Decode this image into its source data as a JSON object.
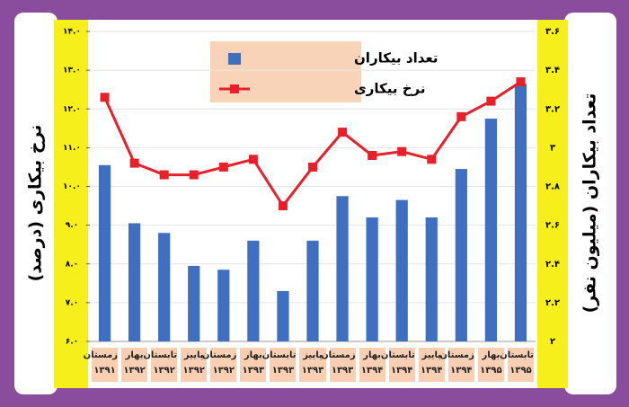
{
  "chart_data": {
    "type": "bar-line",
    "y_label": "نرخ بیکاری (درصد)",
    "y2_label": "تعداد بیکاران (میلیون نفر)",
    "categories": [
      "زمستان\n۱۳۹۱",
      "بهار\n۱۳۹۲",
      "تابستان\n۱۳۹۲",
      "پاییز\n۱۳۹۲",
      "زمستان\n۱۳۹۲",
      "بهار\n۱۳۹۳",
      "تابستان\n۱۳۹۳",
      "پاییز\n۱۳۹۳",
      "زمستان\n۱۳۹۳",
      "بهار\n۱۳۹۴",
      "تابستان\n۱۳۹۴",
      "پاییز\n۱۳۹۴",
      "زمستان\n۱۳۹۴",
      "بهار\n۱۳۹۵",
      "تابستان\n۱۳۹۵"
    ],
    "series": [
      {
        "name": "تعداد بیکاران",
        "type": "bar",
        "axis": "y2",
        "color": "#3f6fc0",
        "values": [
          2.91,
          2.61,
          2.56,
          2.39,
          2.37,
          2.52,
          2.26,
          2.52,
          2.75,
          2.64,
          2.73,
          2.64,
          2.89,
          3.15,
          3.33
        ]
      },
      {
        "name": "نرخ بیکاری",
        "type": "line",
        "axis": "y",
        "color": "#e8202a",
        "values": [
          12.3,
          10.6,
          10.3,
          10.3,
          10.5,
          10.7,
          9.5,
          10.5,
          11.4,
          10.8,
          10.9,
          10.7,
          11.8,
          12.2,
          12.7
        ]
      }
    ],
    "ylim": [
      6,
      14
    ],
    "yticks": [
      {
        "value": 6,
        "label": "۶.۰"
      },
      {
        "value": 7,
        "label": "۷.۰"
      },
      {
        "value": 8,
        "label": "۸.۰"
      },
      {
        "value": 9,
        "label": "۹.۰"
      },
      {
        "value": 10,
        "label": "۱۰.۰"
      },
      {
        "value": 11,
        "label": "۱۱.۰"
      },
      {
        "value": 12,
        "label": "۱۲.۰"
      },
      {
        "value": 13,
        "label": "۱۳.۰"
      },
      {
        "value": 14,
        "label": "۱۴.۰"
      }
    ],
    "y2lim": [
      2,
      3.6
    ],
    "y2ticks": [
      {
        "value": 2,
        "label": "۲"
      },
      {
        "value": 2.2,
        "label": "۲.۲"
      },
      {
        "value": 2.4,
        "label": "۲.۴"
      },
      {
        "value": 2.6,
        "label": "۲.۶"
      },
      {
        "value": 2.8,
        "label": "۲.۸"
      },
      {
        "value": 3,
        "label": "۳"
      },
      {
        "value": 3.2,
        "label": "۳.۲"
      },
      {
        "value": 3.4,
        "label": "۳.۴"
      },
      {
        "value": 3.6,
        "label": "۳.۶"
      }
    ],
    "grid": true
  }
}
